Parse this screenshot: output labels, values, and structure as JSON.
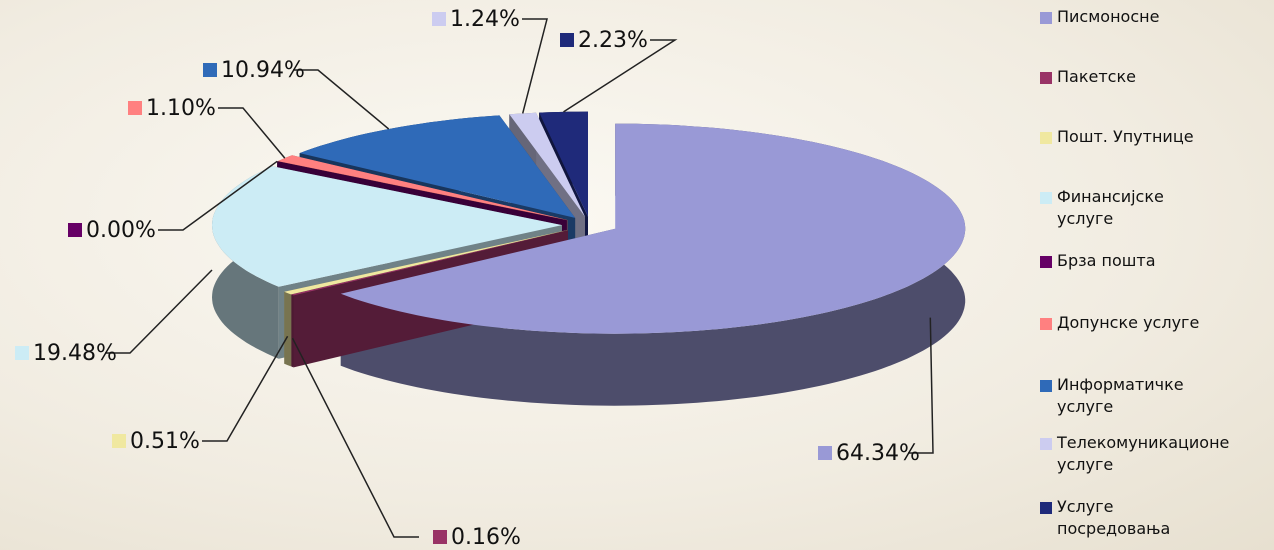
{
  "chart_data": {
    "type": "pie3d",
    "categories": [
      "Писмоносне",
      "Пакетске",
      "Пошт. Упутнице",
      "Финансијске услуге",
      "Брза пошта",
      "Допунске услуге",
      "Информатичке услуге",
      "Телекомуникационе услуге",
      "Услуге   посредовања"
    ],
    "values": [
      64.34,
      0.16,
      0.51,
      19.48,
      0,
      1.1,
      10.94,
      1.24,
      2.23
    ],
    "value_labels": [
      "64.34%",
      "0.16%",
      "0.51%",
      "19.48%",
      "0.00%",
      "1.10%",
      "10.94%",
      "1.24%",
      "2.23%"
    ],
    "colors": [
      "#9999d6",
      "#993366",
      "#f0e8a0",
      "#ccecf5",
      "#660066",
      "#ff8080",
      "#2f6ab8",
      "#ccccf0",
      "#1f2a7a"
    ],
    "legend": "right"
  }
}
